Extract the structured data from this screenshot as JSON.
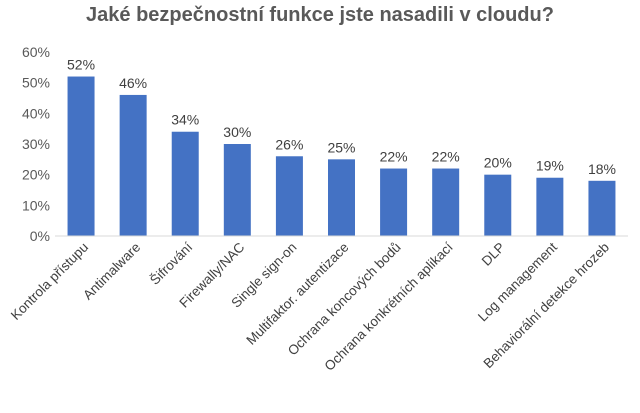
{
  "chart_data": {
    "type": "bar",
    "title": "Jaké bezpečnostní funkce jste nasadili v cloudu?",
    "xlabel": "",
    "ylabel": "",
    "ylim": [
      0,
      60
    ],
    "yticks": [
      "0%",
      "10%",
      "20%",
      "30%",
      "40%",
      "50%",
      "60%"
    ],
    "ytick_values": [
      0,
      10,
      20,
      30,
      40,
      50,
      60
    ],
    "categories": [
      "Kontrola přístupu",
      "Antimalware",
      "Šifrování",
      "Firewally/NAC",
      "Single sign-on",
      "Multifaktor. autentizace",
      "Ochrana koncových bodů",
      "Ochrana konkrétních aplikací",
      "DLP",
      "Log management",
      "Behaviorální detekce hrozeb"
    ],
    "values": [
      52,
      46,
      34,
      30,
      26,
      25,
      22,
      22,
      20,
      19,
      18
    ],
    "value_labels": [
      "52%",
      "46%",
      "34%",
      "30%",
      "26%",
      "25%",
      "22%",
      "22%",
      "20%",
      "19%",
      "18%"
    ],
    "grid": false,
    "legend": "none",
    "bar_color": "#4472C4"
  }
}
